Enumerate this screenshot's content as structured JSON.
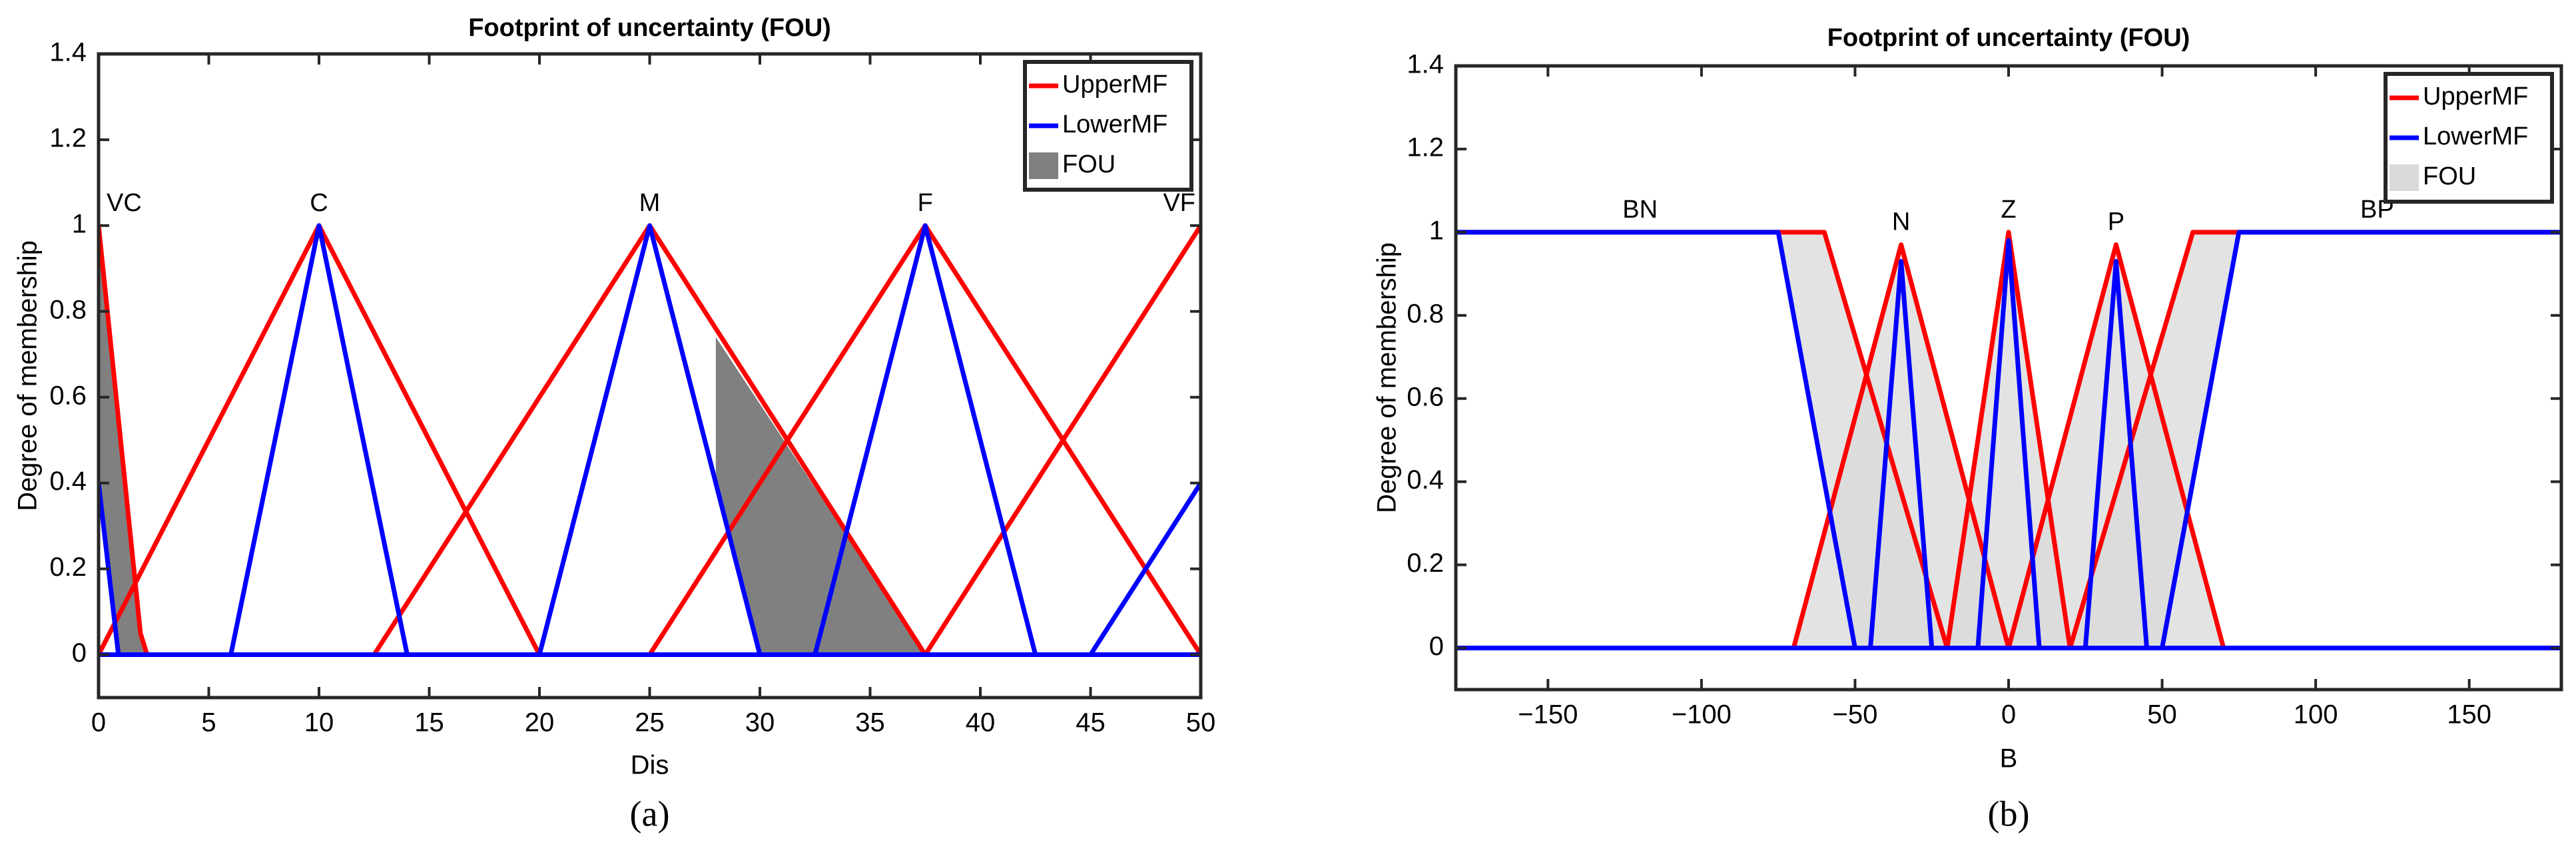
{
  "chart_data": [
    {
      "type": "line",
      "title": "Footprint of uncertainty (FOU)",
      "xlabel": "Dis",
      "ylabel": "Degree of membership",
      "caption": "(a)",
      "xlim": [
        0,
        50
      ],
      "ylim": [
        -0.1,
        1.4
      ],
      "xticks": [
        0,
        5,
        10,
        15,
        20,
        25,
        30,
        35,
        40,
        45,
        50
      ],
      "yticks": [
        0,
        0.2,
        0.4,
        0.6,
        0.8,
        1,
        1.2,
        1.4
      ],
      "legend": "upper right",
      "mf_labels": [
        "VC",
        "C",
        "M",
        "F",
        "VF"
      ],
      "series": [
        {
          "name": "UpperMF",
          "color": "#ff0000",
          "lines": [
            {
              "x": [
                0,
                1.9,
                2.2
              ],
              "values": [
                1,
                0.05,
                0
              ]
            },
            {
              "x": [
                0,
                10,
                20
              ],
              "values": [
                0,
                1,
                0
              ]
            },
            {
              "x": [
                12.5,
                25,
                37.5
              ],
              "values": [
                0,
                1,
                0
              ]
            },
            {
              "x": [
                25,
                37.5,
                50
              ],
              "values": [
                0,
                1,
                0
              ]
            },
            {
              "x": [
                37.5,
                50
              ],
              "values": [
                0,
                1
              ]
            }
          ]
        },
        {
          "name": "LowerMF",
          "color": "#0000ff",
          "lines": [
            {
              "x": [
                0,
                0.9
              ],
              "values": [
                0.4,
                0
              ]
            },
            {
              "x": [
                6,
                10,
                14
              ],
              "values": [
                0,
                1,
                0
              ]
            },
            {
              "x": [
                20,
                25,
                30
              ],
              "values": [
                0,
                1,
                0
              ]
            },
            {
              "x": [
                32.5,
                37.5,
                42.5
              ],
              "values": [
                0,
                1,
                0
              ]
            },
            {
              "x": [
                45,
                50
              ],
              "values": [
                0,
                0.4
              ]
            },
            {
              "x": [
                0,
                50
              ],
              "values": [
                0,
                0
              ]
            }
          ]
        },
        {
          "name": "FOU",
          "color": "#808080",
          "regions": [
            {
              "x": [
                0,
                1.9,
                2.2,
                0.9,
                0
              ],
              "values": [
                1,
                0.05,
                0,
                0,
                0.4
              ]
            },
            {
              "x": [
                28,
                37.5,
                30,
                28
              ],
              "values": [
                0.74,
                0,
                0,
                0.4
              ]
            }
          ]
        }
      ]
    },
    {
      "type": "line",
      "title": "Footprint of uncertainty (FOU)",
      "xlabel": "B",
      "ylabel": "Degree of membership",
      "caption": "(b)",
      "xlim": [
        -180,
        180
      ],
      "ylim": [
        -0.1,
        1.4
      ],
      "xticks": [
        {
          "value": -150,
          "label": "−150"
        },
        {
          "value": -100,
          "label": "−100"
        },
        {
          "value": -50,
          "label": "−50"
        },
        0,
        50,
        100,
        150
      ],
      "yticks": [
        0,
        0.2,
        0.4,
        0.6,
        0.8,
        1,
        1.2,
        1.4
      ],
      "legend": "upper right",
      "mf_labels": [
        "BN",
        "N",
        "Z",
        "P",
        "BP"
      ],
      "series": [
        {
          "name": "UpperMF",
          "color": "#ff0000",
          "lines": [
            {
              "x": [
                -180,
                -60,
                -20
              ],
              "values": [
                1,
                1,
                0
              ]
            },
            {
              "x": [
                -70,
                -35,
                0
              ],
              "values": [
                0,
                0.97,
                0
              ]
            },
            {
              "x": [
                -20,
                0,
                20
              ],
              "values": [
                0,
                1,
                0
              ]
            },
            {
              "x": [
                0,
                35,
                70
              ],
              "values": [
                0,
                0.97,
                0
              ]
            },
            {
              "x": [
                20,
                60,
                180
              ],
              "values": [
                0,
                1,
                1
              ]
            }
          ]
        },
        {
          "name": "LowerMF",
          "color": "#0000ff",
          "lines": [
            {
              "x": [
                -180,
                -75,
                -50
              ],
              "values": [
                1,
                1,
                0
              ]
            },
            {
              "x": [
                -45,
                -35,
                -25
              ],
              "values": [
                0,
                0.93,
                0
              ]
            },
            {
              "x": [
                -10,
                0,
                10
              ],
              "values": [
                0,
                0.98,
                0
              ]
            },
            {
              "x": [
                25,
                35,
                45
              ],
              "values": [
                0,
                0.93,
                0
              ]
            },
            {
              "x": [
                50,
                75,
                180
              ],
              "values": [
                0,
                1,
                1
              ]
            },
            {
              "x": [
                -180,
                180
              ],
              "values": [
                0,
                0
              ]
            }
          ]
        },
        {
          "name": "FOU",
          "color": "#d9d9d9",
          "regions": [
            {
              "x": [
                -75,
                -60,
                -20,
                -50
              ],
              "values": [
                1,
                1,
                0,
                0
              ]
            },
            {
              "x": [
                -70,
                -35,
                0
              ],
              "values": [
                0,
                0.97,
                0
              ]
            },
            {
              "x": [
                -20,
                0,
                20
              ],
              "values": [
                0,
                1,
                0
              ]
            },
            {
              "x": [
                0,
                35,
                70
              ],
              "values": [
                0,
                0.97,
                0
              ]
            },
            {
              "x": [
                75,
                60,
                20,
                50
              ],
              "values": [
                1,
                1,
                0,
                0
              ]
            }
          ]
        }
      ]
    }
  ]
}
